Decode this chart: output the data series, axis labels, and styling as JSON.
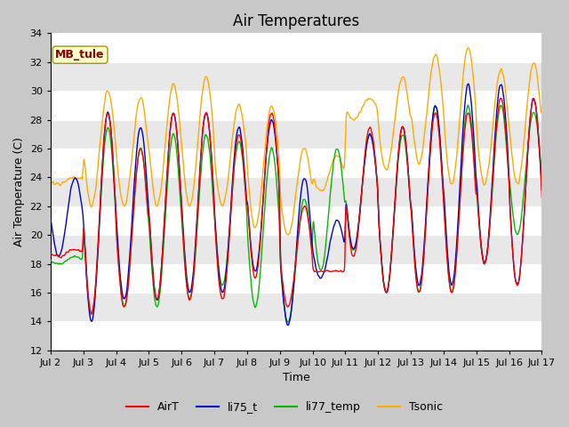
{
  "title": "Air Temperatures",
  "xlabel": "Time",
  "ylabel": "Air Temperature (C)",
  "ylim": [
    12,
    34
  ],
  "yticks": [
    12,
    14,
    16,
    18,
    20,
    22,
    24,
    26,
    28,
    30,
    32,
    34
  ],
  "xtick_labels": [
    "Jul 2",
    "Jul 3",
    "Jul 4",
    "Jul 5",
    "Jul 6",
    "Jul 7",
    "Jul 8",
    "Jul 9",
    "Jul 10",
    "Jul 11",
    "Jul 12",
    "Jul 13",
    "Jul 14",
    "Jul 15",
    "Jul 16",
    "Jul 17"
  ],
  "legend_labels": [
    "AirT",
    "li75_t",
    "li77_temp",
    "Tsonic"
  ],
  "legend_colors": [
    "#ff0000",
    "#0000cc",
    "#00bb00",
    "#ffaa00"
  ],
  "annotation_text": "MB_tule",
  "annotation_bg": "#ffffcc",
  "annotation_fg": "#880000",
  "fig_bg": "#c8c8c8",
  "plot_bg": "#e8e8e8",
  "alt_band_color": "#d0d0d0",
  "title_fontsize": 12,
  "label_fontsize": 9,
  "tick_fontsize": 8
}
